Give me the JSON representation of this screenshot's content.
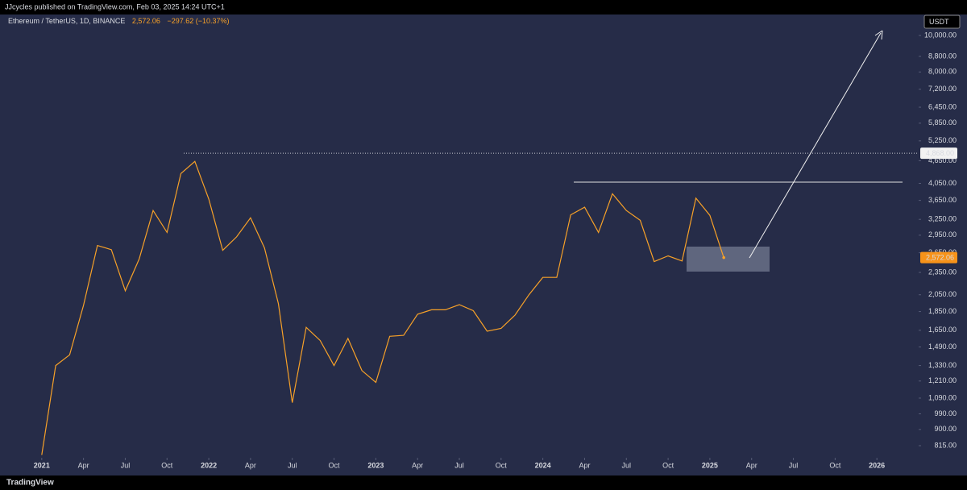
{
  "header": {
    "publisher": "JJcycles published on TradingView.com, Feb 03, 2025 14:24 UTC+1",
    "footer_logo": "TradingView",
    "currency": "USDT"
  },
  "chart_data": {
    "type": "line",
    "x": [
      "2021-01",
      "2021-02",
      "2021-03",
      "2021-04",
      "2021-05",
      "2021-06",
      "2021-07",
      "2021-08",
      "2021-09",
      "2021-10",
      "2021-11",
      "2021-12",
      "2022-01",
      "2022-02",
      "2022-03",
      "2022-04",
      "2022-05",
      "2022-06",
      "2022-07",
      "2022-08",
      "2022-09",
      "2022-10",
      "2022-11",
      "2022-12",
      "2023-01",
      "2023-02",
      "2023-03",
      "2023-04",
      "2023-05",
      "2023-06",
      "2023-07",
      "2023-08",
      "2023-09",
      "2023-10",
      "2023-11",
      "2023-12",
      "2024-01",
      "2024-02",
      "2024-03",
      "2024-04",
      "2024-05",
      "2024-06",
      "2024-07",
      "2024-08",
      "2024-09",
      "2024-10",
      "2024-11",
      "2024-12",
      "2025-01",
      "2025-02"
    ],
    "series": [
      {
        "name": "Ethereum / TetherUS, 1D, BINANCE",
        "color": "#f7a128",
        "values": [
          770,
          1330,
          1420,
          1920,
          2770,
          2700,
          2100,
          2550,
          3430,
          3000,
          4300,
          4630,
          3680,
          2690,
          2920,
          3280,
          2730,
          1940,
          1060,
          1680,
          1550,
          1330,
          1570,
          1290,
          1200,
          1590,
          1600,
          1820,
          1870,
          1870,
          1930,
          1860,
          1640,
          1670,
          1810,
          2050,
          2280,
          2280,
          3340,
          3500,
          3000,
          3800,
          3430,
          3230,
          2510,
          2600,
          2520,
          3700,
          3330,
          2572.06
        ]
      }
    ],
    "price_tag": {
      "value": 2572.06,
      "label": "2,572.06"
    },
    "change": "−297.62 (−10.37%)",
    "ath_level": {
      "value": 4868,
      "label": "4,868.00"
    },
    "log_scale": true,
    "xlim": [
      "2020-10",
      "2026-04"
    ],
    "xticks": [
      {
        "value": "2021-01",
        "label": "2021"
      },
      {
        "value": "2021-04",
        "label": "Apr"
      },
      {
        "value": "2021-07",
        "label": "Jul"
      },
      {
        "value": "2021-10",
        "label": "Oct"
      },
      {
        "value": "2022-01",
        "label": "2022"
      },
      {
        "value": "2022-04",
        "label": "Apr"
      },
      {
        "value": "2022-07",
        "label": "Jul"
      },
      {
        "value": "2022-10",
        "label": "Oct"
      },
      {
        "value": "2023-01",
        "label": "2023"
      },
      {
        "value": "2023-04",
        "label": "Apr"
      },
      {
        "value": "2023-07",
        "label": "Jul"
      },
      {
        "value": "2023-10",
        "label": "Oct"
      },
      {
        "value": "2024-01",
        "label": "2024"
      },
      {
        "value": "2024-04",
        "label": "Apr"
      },
      {
        "value": "2024-07",
        "label": "Jul"
      },
      {
        "value": "2024-10",
        "label": "Oct"
      },
      {
        "value": "2025-01",
        "label": "2025"
      },
      {
        "value": "2025-04",
        "label": "Apr"
      },
      {
        "value": "2025-07",
        "label": "Jul"
      },
      {
        "value": "2025-10",
        "label": "Oct"
      },
      {
        "value": "2026-01",
        "label": "2026"
      }
    ],
    "ylim": [
      757,
      10820
    ],
    "yticks": [
      {
        "value": 815,
        "label": "815.00"
      },
      {
        "value": 900,
        "label": "900.00"
      },
      {
        "value": 990,
        "label": "990.00"
      },
      {
        "value": 1090,
        "label": "1,090.00"
      },
      {
        "value": 1210,
        "label": "1,210.00"
      },
      {
        "value": 1330,
        "label": "1,330.00"
      },
      {
        "value": 1490,
        "label": "1,490.00"
      },
      {
        "value": 1650,
        "label": "1,650.00"
      },
      {
        "value": 1850,
        "label": "1,850.00"
      },
      {
        "value": 2050,
        "label": "2,050.00"
      },
      {
        "value": 2350,
        "label": "2,350.00"
      },
      {
        "value": 2650,
        "label": "2,650.00"
      },
      {
        "value": 2950,
        "label": "2,950.00"
      },
      {
        "value": 3250,
        "label": "3,250.00"
      },
      {
        "value": 3650,
        "label": "3,650.00"
      },
      {
        "value": 4050,
        "label": "4,050.00"
      },
      {
        "value": 4650,
        "label": "4,650.00"
      },
      {
        "value": 5250,
        "label": "5,250.00"
      },
      {
        "value": 5850,
        "label": "5,850.00"
      },
      {
        "value": 6450,
        "label": "6,450.00"
      },
      {
        "value": 7200,
        "label": "7,200.00"
      },
      {
        "value": 8000,
        "label": "8,000.00"
      },
      {
        "value": 8800,
        "label": "8,800.00"
      },
      {
        "value": 10000,
        "label": "10,000.00"
      }
    ],
    "grid": false
  }
}
